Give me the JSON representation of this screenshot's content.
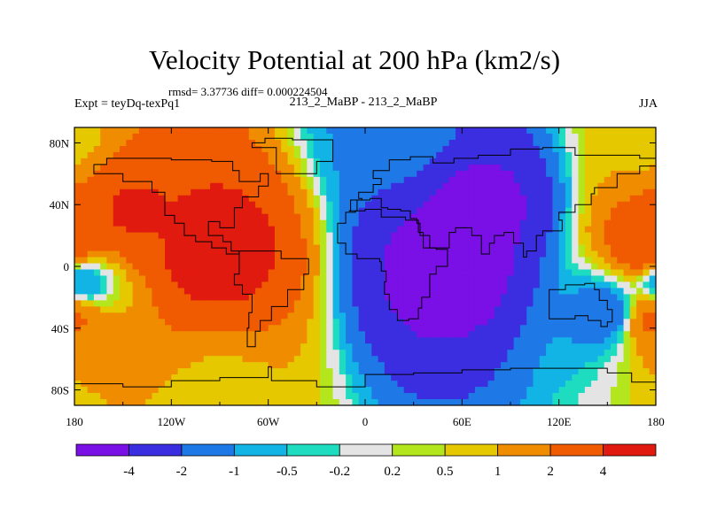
{
  "chart_data": {
    "type": "heatmap",
    "title": "Velocity Potential at 200 hPa (km2/s)",
    "stats_text": "rmsd= 3.37736 diff= 0.000224504",
    "left_label": "Expt = teyDq-texPq1",
    "center_label": "213_2_MaBP - 213_2_MaBP",
    "right_label": "JJA",
    "x_axis": {
      "range": [
        -180,
        180
      ],
      "ticks": [
        -180,
        -120,
        -60,
        0,
        60,
        120,
        180
      ],
      "tick_labels": [
        "180",
        "120W",
        "60W",
        "0",
        "60E",
        "120E",
        "180"
      ]
    },
    "y_axis": {
      "range": [
        -90,
        90
      ],
      "ticks": [
        80,
        40,
        0,
        -40,
        -80
      ],
      "tick_labels": [
        "80N",
        "40N",
        "0",
        "40S",
        "80S"
      ]
    },
    "colorbar": {
      "levels": [
        -4,
        -2,
        -1,
        -0.5,
        -0.2,
        0.2,
        0.5,
        1,
        2,
        4
      ],
      "level_labels": [
        "-4",
        "-2",
        "-1",
        "-0.5",
        "-0.2",
        "0.2",
        "0.5",
        "1",
        "2",
        "4"
      ],
      "colors": [
        "#7a0fe6",
        "#3a2ee0",
        "#1e78e6",
        "#12b4e6",
        "#1edcc0",
        "#e4e4e4",
        "#b4e61e",
        "#e6c800",
        "#f08c00",
        "#f05a00",
        "#e11a10"
      ]
    },
    "field_centers": [
      {
        "lon": -95,
        "lat": 10,
        "value": 5.2
      },
      {
        "lon": -145,
        "lat": 35,
        "value": 4.2
      },
      {
        "lon": 55,
        "lat": 0,
        "value": -5.4
      },
      {
        "lon": 72,
        "lat": 38,
        "value": -4.6
      },
      {
        "lon": 175,
        "lat": 12,
        "value": 3.4
      },
      {
        "lon": 178,
        "lat": -34,
        "value": 2.2
      },
      {
        "lon": -175,
        "lat": -10,
        "value": -1.0
      },
      {
        "lon": 150,
        "lat": -30,
        "value": -1.6
      },
      {
        "lon": 20,
        "lat": 88,
        "value": -1.2
      },
      {
        "lon": 175,
        "lat": 82,
        "value": 0.8
      },
      {
        "lon": -90,
        "lat": -85,
        "value": 0.8
      }
    ]
  }
}
